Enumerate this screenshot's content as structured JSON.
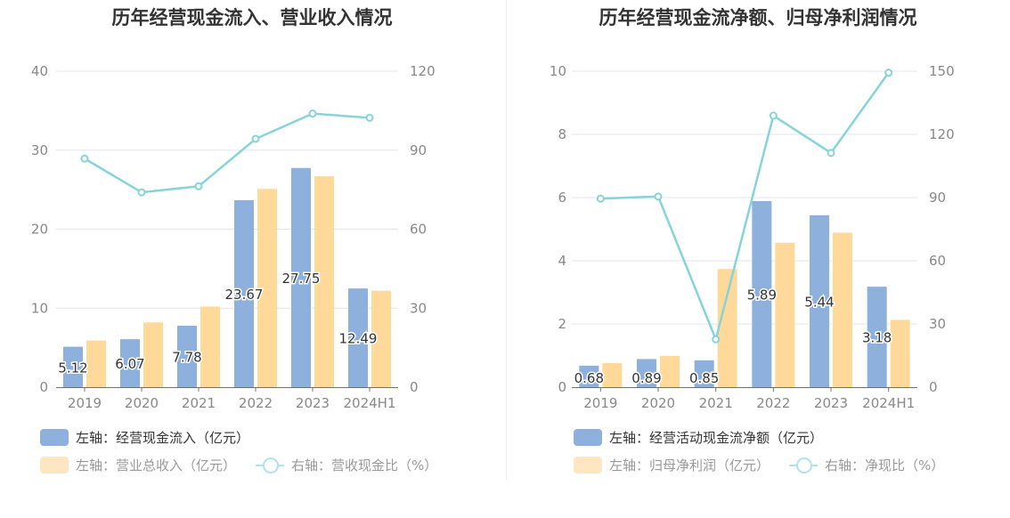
{
  "charts": [
    {
      "title": "历年经营现金流入、营业收入情况",
      "legend": [
        {
          "label": "左轴：经营现金流入（亿元）",
          "type": "bar",
          "color": "#8eb0dd"
        },
        {
          "label": "左轴：营业总收入（亿元）",
          "type": "bar",
          "color": "#fde7c3"
        },
        {
          "label": "右轴：营收现金比（%）",
          "type": "line",
          "color": "#aee3e8"
        }
      ]
    },
    {
      "title": "历年经营现金流净额、归母净利润情况",
      "legend": [
        {
          "label": "左轴：经营活动现金流净额（亿元）",
          "type": "bar",
          "color": "#8eb0dd"
        },
        {
          "label": "左轴：归母净利润（亿元）",
          "type": "bar",
          "color": "#fde7c3"
        },
        {
          "label": "右轴：净现比（%）",
          "type": "line",
          "color": "#aee3e8"
        }
      ]
    }
  ],
  "chart_data": [
    {
      "type": "bar",
      "title": "历年经营现金流入、营业收入情况",
      "categories": [
        "2019",
        "2020",
        "2021",
        "2022",
        "2023",
        "2024H1"
      ],
      "y_left": {
        "min": 0,
        "max": 40,
        "ticks": [
          "0",
          "10",
          "20",
          "30",
          "40"
        ]
      },
      "y_right": {
        "min": 0,
        "max": 120,
        "ticks": [
          "0",
          "30",
          "60",
          "90",
          "120"
        ]
      },
      "grid": true,
      "legend_position": "bottom-left",
      "series": [
        {
          "name": "左轴：经营现金流入（亿元）",
          "type": "bar",
          "axis": "left",
          "color": "#8eb0dd",
          "values": [
            5.12,
            6.07,
            7.78,
            23.67,
            27.75,
            12.49
          ],
          "labels": [
            "5.12",
            "6.07",
            "7.78",
            "23.67",
            "27.75",
            "12.49"
          ]
        },
        {
          "name": "左轴：营业总收入（亿元）",
          "type": "bar",
          "axis": "left",
          "color": "#ffd99a",
          "values": [
            5.9,
            8.2,
            10.2,
            25.1,
            26.7,
            12.2
          ],
          "labels": []
        },
        {
          "name": "右轴：营收现金比（%）",
          "type": "line",
          "axis": "right",
          "color": "#86d4d9",
          "values": [
            86.8,
            74.0,
            76.3,
            94.3,
            103.9,
            102.3
          ],
          "labels": []
        }
      ]
    },
    {
      "type": "bar",
      "title": "历年经营现金流净额、归母净利润情况",
      "categories": [
        "2019",
        "2020",
        "2021",
        "2022",
        "2023",
        "2024H1"
      ],
      "y_left": {
        "min": 0,
        "max": 10,
        "ticks": [
          "0",
          "2",
          "4",
          "6",
          "8",
          "10"
        ]
      },
      "y_right": {
        "min": 0,
        "max": 150,
        "ticks": [
          "0",
          "30",
          "60",
          "90",
          "120",
          "150"
        ]
      },
      "grid": true,
      "legend_position": "bottom-left",
      "series": [
        {
          "name": "左轴：经营活动现金流净额（亿元）",
          "type": "bar",
          "axis": "left",
          "color": "#8eb0dd",
          "values": [
            0.68,
            0.89,
            0.85,
            5.89,
            5.44,
            3.18
          ],
          "labels": [
            "0.68",
            "0.89",
            "0.85",
            "5.89",
            "5.44",
            "3.18"
          ]
        },
        {
          "name": "左轴：归母净利润（亿元）",
          "type": "bar",
          "axis": "left",
          "color": "#ffd99a",
          "values": [
            0.76,
            0.99,
            3.74,
            4.57,
            4.89,
            2.13
          ],
          "labels": []
        },
        {
          "name": "右轴：净现比（%）",
          "type": "line",
          "axis": "right",
          "color": "#86d4d9",
          "values": [
            89.5,
            90.5,
            22.7,
            128.9,
            111.2,
            149.3
          ],
          "labels": []
        }
      ]
    }
  ]
}
